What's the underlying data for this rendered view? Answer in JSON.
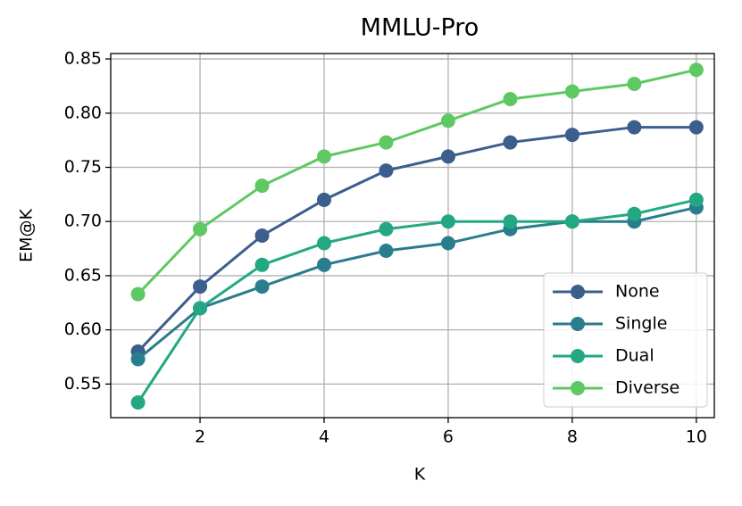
{
  "chart_data": {
    "type": "line",
    "title": "MMLU-Pro",
    "x_label": "K",
    "y_label": "EM@K",
    "x": [
      1,
      2,
      3,
      4,
      5,
      6,
      7,
      8,
      9,
      10
    ],
    "series": [
      {
        "name": "None",
        "color": "#3b5e8c",
        "values": [
          0.58,
          0.64,
          0.687,
          0.72,
          0.747,
          0.76,
          0.773,
          0.78,
          0.787,
          0.787
        ]
      },
      {
        "name": "Single",
        "color": "#2a7d8c",
        "values": [
          0.573,
          0.62,
          0.64,
          0.66,
          0.673,
          0.68,
          0.693,
          0.7,
          0.7,
          0.713
        ]
      },
      {
        "name": "Dual",
        "color": "#23a883",
        "values": [
          0.533,
          0.62,
          0.66,
          0.68,
          0.693,
          0.7,
          0.7,
          0.7,
          0.707,
          0.72
        ]
      },
      {
        "name": "Diverse",
        "color": "#5ec962",
        "values": [
          0.633,
          0.693,
          0.733,
          0.76,
          0.773,
          0.793,
          0.813,
          0.82,
          0.827,
          0.84
        ]
      }
    ],
    "xlim": [
      0.56,
      10.29
    ],
    "ylim": [
      0.519,
      0.855
    ],
    "xticks": [
      2,
      4,
      6,
      8,
      10
    ],
    "yticks": [
      0.55,
      {
        "value": 0.6,
        "label": "0.60"
      },
      0.65,
      {
        "value": 0.7,
        "label": "0.70"
      },
      0.75,
      {
        "value": 0.8,
        "label": "0.80"
      },
      0.85
    ],
    "grid": true,
    "legend": "lower right"
  }
}
